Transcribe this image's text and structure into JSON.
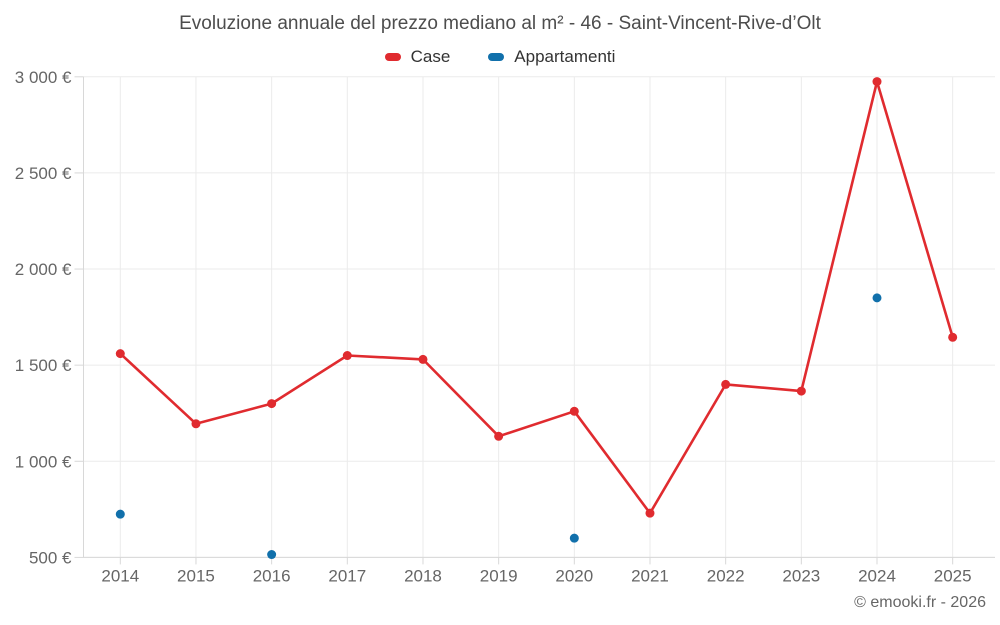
{
  "chart_data": {
    "type": "line",
    "title": "Evoluzione annuale del prezzo mediano al m² - 46 - Saint-Vincent-Rive-d’Olt",
    "categories": [
      "2014",
      "2015",
      "2016",
      "2017",
      "2018",
      "2019",
      "2020",
      "2021",
      "2022",
      "2023",
      "2024",
      "2025"
    ],
    "series": [
      {
        "name": "Case",
        "color": "#e02b2f",
        "draw_line": true,
        "marker_radius": 4.5,
        "line_width": 2.6,
        "values": [
          1560,
          1195,
          1300,
          1550,
          1530,
          1130,
          1260,
          730,
          1400,
          1365,
          2975,
          1645
        ]
      },
      {
        "name": "Appartamenti",
        "color": "#1170ab",
        "draw_line": false,
        "marker_radius": 4.5,
        "line_width": 2.6,
        "values": [
          725,
          null,
          515,
          null,
          null,
          null,
          600,
          null,
          null,
          null,
          1850,
          null
        ]
      }
    ],
    "ylim": [
      500,
      3000
    ],
    "ytick_step": 500,
    "ytick_labels": [
      "500 €",
      "1 000 €",
      "1 500 €",
      "2 000 €",
      "2 500 €",
      "3 000 €"
    ],
    "xlabel": "",
    "ylabel": "",
    "grid": true,
    "legend_position": "top"
  },
  "credit": "© emooki.fr - 2026",
  "colors": {
    "grid": "#ebebeb",
    "axis": "#d8d8d8",
    "tick": "#d8d8d8",
    "axis_text": "#666666",
    "title_text": "#4d4d4d",
    "legend_text": "#333333",
    "background": "#ffffff"
  }
}
